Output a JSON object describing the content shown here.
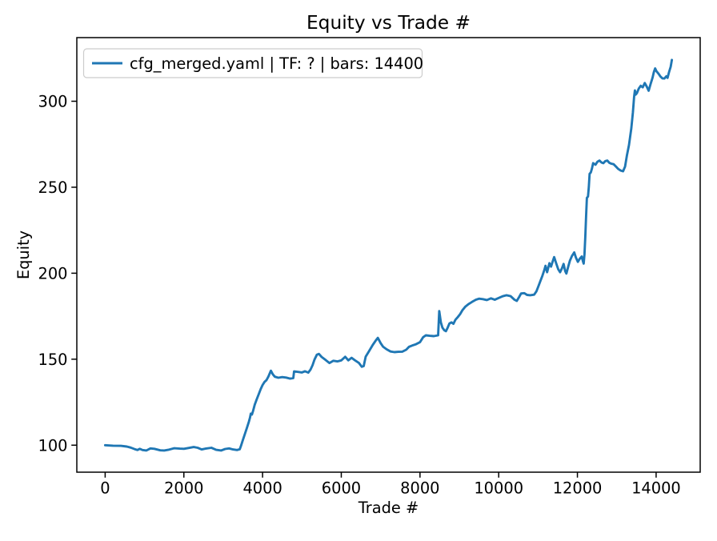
{
  "chart_data": {
    "type": "line",
    "title": "Equity vs Trade #",
    "xlabel": "Trade #",
    "ylabel": "Equity",
    "xlim": [
      -720,
      15120
    ],
    "ylim": [
      84.3,
      337.0
    ],
    "xticks": [
      0,
      2000,
      4000,
      6000,
      8000,
      10000,
      12000,
      14000
    ],
    "yticks": [
      100,
      150,
      200,
      250,
      300
    ],
    "grid": false,
    "legend": {
      "position": "upper left",
      "entries": [
        {
          "label": "cfg_merged.yaml | TF: ? | bars: 14400",
          "color": "#1f77b4"
        }
      ]
    },
    "series": [
      {
        "name": "cfg_merged.yaml | TF: ? | bars: 14400",
        "color": "#1f77b4",
        "points": [
          [
            0,
            100.0
          ],
          [
            200,
            99.7
          ],
          [
            400,
            99.6
          ],
          [
            550,
            99.2
          ],
          [
            650,
            98.6
          ],
          [
            750,
            97.7
          ],
          [
            820,
            97.2
          ],
          [
            880,
            97.9
          ],
          [
            950,
            97.2
          ],
          [
            1050,
            96.9
          ],
          [
            1150,
            98.1
          ],
          [
            1250,
            97.9
          ],
          [
            1400,
            97.0
          ],
          [
            1500,
            96.9
          ],
          [
            1600,
            97.3
          ],
          [
            1750,
            98.2
          ],
          [
            1900,
            98.0
          ],
          [
            2000,
            97.9
          ],
          [
            2100,
            98.3
          ],
          [
            2250,
            98.9
          ],
          [
            2350,
            98.5
          ],
          [
            2450,
            97.5
          ],
          [
            2550,
            98.0
          ],
          [
            2700,
            98.5
          ],
          [
            2820,
            97.3
          ],
          [
            2950,
            96.9
          ],
          [
            3050,
            97.8
          ],
          [
            3150,
            98.1
          ],
          [
            3250,
            97.5
          ],
          [
            3350,
            97.2
          ],
          [
            3420,
            97.6
          ],
          [
            3450,
            99.5
          ],
          [
            3500,
            103.0
          ],
          [
            3550,
            106.5
          ],
          [
            3600,
            110.0
          ],
          [
            3650,
            113.5
          ],
          [
            3680,
            116.0
          ],
          [
            3700,
            118.3
          ],
          [
            3730,
            117.8
          ],
          [
            3760,
            120.0
          ],
          [
            3800,
            123.5
          ],
          [
            3850,
            126.5
          ],
          [
            3900,
            129.5
          ],
          [
            3950,
            132.5
          ],
          [
            4000,
            135.0
          ],
          [
            4050,
            136.8
          ],
          [
            4100,
            137.8
          ],
          [
            4150,
            140.0
          ],
          [
            4210,
            143.3
          ],
          [
            4260,
            141.2
          ],
          [
            4310,
            139.8
          ],
          [
            4400,
            139.2
          ],
          [
            4500,
            139.6
          ],
          [
            4600,
            139.3
          ],
          [
            4700,
            138.7
          ],
          [
            4780,
            139.0
          ],
          [
            4800,
            142.9
          ],
          [
            4900,
            142.6
          ],
          [
            5000,
            142.3
          ],
          [
            5080,
            143.0
          ],
          [
            5160,
            142.2
          ],
          [
            5220,
            144.0
          ],
          [
            5270,
            146.5
          ],
          [
            5320,
            149.8
          ],
          [
            5380,
            152.6
          ],
          [
            5430,
            153.1
          ],
          [
            5500,
            151.3
          ],
          [
            5600,
            149.6
          ],
          [
            5700,
            147.8
          ],
          [
            5800,
            149.1
          ],
          [
            5900,
            148.7
          ],
          [
            6000,
            149.3
          ],
          [
            6100,
            151.4
          ],
          [
            6180,
            149.3
          ],
          [
            6260,
            150.8
          ],
          [
            6350,
            149.3
          ],
          [
            6450,
            147.8
          ],
          [
            6520,
            145.6
          ],
          [
            6570,
            146.0
          ],
          [
            6620,
            151.5
          ],
          [
            6700,
            154.5
          ],
          [
            6800,
            158.3
          ],
          [
            6880,
            161.0
          ],
          [
            6930,
            162.4
          ],
          [
            7000,
            159.3
          ],
          [
            7060,
            157.3
          ],
          [
            7150,
            155.8
          ],
          [
            7250,
            154.5
          ],
          [
            7350,
            154.1
          ],
          [
            7450,
            154.3
          ],
          [
            7550,
            154.4
          ],
          [
            7650,
            155.5
          ],
          [
            7720,
            157.2
          ],
          [
            7800,
            157.9
          ],
          [
            7900,
            158.7
          ],
          [
            8000,
            159.9
          ],
          [
            8080,
            162.8
          ],
          [
            8150,
            163.9
          ],
          [
            8250,
            163.6
          ],
          [
            8350,
            163.4
          ],
          [
            8460,
            163.9
          ],
          [
            8490,
            178.0
          ],
          [
            8530,
            171.5
          ],
          [
            8570,
            168.3
          ],
          [
            8620,
            166.8
          ],
          [
            8660,
            166.3
          ],
          [
            8700,
            168.2
          ],
          [
            8750,
            170.8
          ],
          [
            8800,
            171.4
          ],
          [
            8850,
            170.6
          ],
          [
            8900,
            172.9
          ],
          [
            8960,
            174.5
          ],
          [
            9020,
            176.2
          ],
          [
            9080,
            178.6
          ],
          [
            9150,
            180.5
          ],
          [
            9230,
            182.0
          ],
          [
            9320,
            183.3
          ],
          [
            9420,
            184.6
          ],
          [
            9500,
            185.2
          ],
          [
            9600,
            184.9
          ],
          [
            9700,
            184.4
          ],
          [
            9800,
            185.4
          ],
          [
            9900,
            184.6
          ],
          [
            10000,
            185.6
          ],
          [
            10100,
            186.6
          ],
          [
            10200,
            187.2
          ],
          [
            10300,
            186.7
          ],
          [
            10400,
            184.6
          ],
          [
            10460,
            183.9
          ],
          [
            10520,
            186.2
          ],
          [
            10570,
            188.2
          ],
          [
            10650,
            188.4
          ],
          [
            10720,
            187.4
          ],
          [
            10800,
            187.2
          ],
          [
            10900,
            187.5
          ],
          [
            10960,
            189.5
          ],
          [
            11010,
            192.5
          ],
          [
            11060,
            195.5
          ],
          [
            11110,
            198.5
          ],
          [
            11160,
            202.0
          ],
          [
            11190,
            204.3
          ],
          [
            11230,
            200.6
          ],
          [
            11290,
            205.8
          ],
          [
            11330,
            203.8
          ],
          [
            11380,
            207.5
          ],
          [
            11410,
            209.4
          ],
          [
            11460,
            205.8
          ],
          [
            11510,
            202.4
          ],
          [
            11560,
            200.6
          ],
          [
            11610,
            203.0
          ],
          [
            11650,
            205.4
          ],
          [
            11690,
            201.2
          ],
          [
            11720,
            199.8
          ],
          [
            11770,
            204.0
          ],
          [
            11810,
            207.3
          ],
          [
            11860,
            210.0
          ],
          [
            11920,
            212.1
          ],
          [
            11960,
            209.2
          ],
          [
            12010,
            206.6
          ],
          [
            12060,
            208.4
          ],
          [
            12110,
            209.7
          ],
          [
            12140,
            207.0
          ],
          [
            12160,
            205.6
          ],
          [
            12180,
            211.0
          ],
          [
            12200,
            221.0
          ],
          [
            12220,
            233.0
          ],
          [
            12240,
            243.8
          ],
          [
            12270,
            244.6
          ],
          [
            12290,
            250.0
          ],
          [
            12310,
            257.8
          ],
          [
            12340,
            258.6
          ],
          [
            12370,
            261.0
          ],
          [
            12400,
            264.0
          ],
          [
            12460,
            263.1
          ],
          [
            12510,
            264.8
          ],
          [
            12560,
            265.5
          ],
          [
            12610,
            264.4
          ],
          [
            12660,
            264.0
          ],
          [
            12710,
            265.2
          ],
          [
            12760,
            265.5
          ],
          [
            12810,
            264.2
          ],
          [
            12860,
            263.7
          ],
          [
            12920,
            263.4
          ],
          [
            12980,
            262.0
          ],
          [
            13040,
            260.6
          ],
          [
            13100,
            259.7
          ],
          [
            13160,
            259.3
          ],
          [
            13210,
            262.0
          ],
          [
            13260,
            268.7
          ],
          [
            13310,
            274.5
          ],
          [
            13340,
            279.5
          ],
          [
            13370,
            284.2
          ],
          [
            13410,
            293.5
          ],
          [
            13440,
            302.5
          ],
          [
            13460,
            306.3
          ],
          [
            13480,
            303.8
          ],
          [
            13510,
            304.6
          ],
          [
            13560,
            307.4
          ],
          [
            13610,
            309.0
          ],
          [
            13660,
            308.1
          ],
          [
            13710,
            310.6
          ],
          [
            13760,
            308.6
          ],
          [
            13810,
            306.1
          ],
          [
            13860,
            310.0
          ],
          [
            13910,
            313.8
          ],
          [
            13940,
            316.8
          ],
          [
            13975,
            319.1
          ],
          [
            14010,
            317.4
          ],
          [
            14060,
            316.0
          ],
          [
            14110,
            314.4
          ],
          [
            14160,
            313.3
          ],
          [
            14210,
            313.2
          ],
          [
            14260,
            314.5
          ],
          [
            14290,
            313.6
          ],
          [
            14330,
            317.0
          ],
          [
            14370,
            320.0
          ],
          [
            14400,
            324.0
          ]
        ]
      }
    ]
  }
}
